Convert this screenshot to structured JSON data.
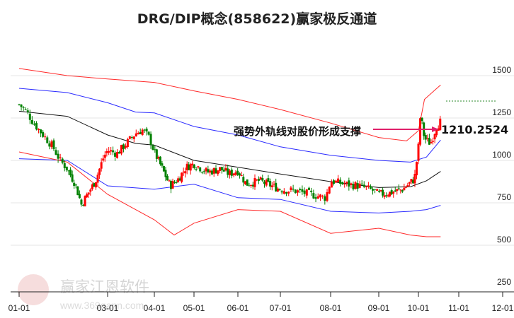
{
  "chart_data": {
    "type": "candlestick",
    "title": "DRG/DIP概念(858622)赢家极反通道",
    "y_ticks": [
      1500,
      1250,
      1000,
      750,
      500,
      250
    ],
    "ylim": [
      230,
      1560
    ],
    "x_ticks": [
      {
        "m": 1,
        "label": "01-01"
      },
      {
        "m": 3,
        "label": "03-01"
      },
      {
        "m": 4,
        "label": "04-01"
      },
      {
        "m": 5,
        "label": "05-01"
      },
      {
        "m": 6,
        "label": "06-01"
      },
      {
        "m": 7,
        "label": "07-01"
      },
      {
        "m": 8,
        "label": "08-01"
      },
      {
        "m": 9,
        "label": "09-01"
      },
      {
        "m": 10,
        "label": "10-01"
      },
      {
        "m": 11,
        "label": "11-01"
      },
      {
        "m": 12,
        "label": "12-01"
      }
    ],
    "close": [
      [
        1.0,
        1330
      ],
      [
        1.15,
        1290
      ],
      [
        1.3,
        1220
      ],
      [
        1.5,
        1150
      ],
      [
        1.7,
        1080
      ],
      [
        1.85,
        1000
      ],
      [
        2.0,
        950
      ],
      [
        2.2,
        860
      ],
      [
        2.35,
        740
      ],
      [
        2.5,
        800
      ],
      [
        2.7,
        880
      ],
      [
        2.9,
        1020
      ],
      [
        3.0,
        1060
      ],
      [
        3.2,
        1040
      ],
      [
        3.4,
        1100
      ],
      [
        3.6,
        1160
      ],
      [
        3.75,
        1180
      ],
      [
        3.9,
        1130
      ],
      [
        4.0,
        1050
      ],
      [
        4.2,
        950
      ],
      [
        4.4,
        850
      ],
      [
        4.6,
        890
      ],
      [
        4.8,
        960
      ],
      [
        5.0,
        980
      ],
      [
        5.3,
        930
      ],
      [
        5.6,
        950
      ],
      [
        5.8,
        920
      ],
      [
        6.0,
        940
      ],
      [
        6.2,
        860
      ],
      [
        6.5,
        880
      ],
      [
        6.8,
        850
      ],
      [
        7.0,
        830
      ],
      [
        7.3,
        820
      ],
      [
        7.6,
        800
      ],
      [
        7.9,
        780
      ],
      [
        8.0,
        880
      ],
      [
        8.3,
        860
      ],
      [
        8.6,
        850
      ],
      [
        8.9,
        820
      ],
      [
        9.0,
        800
      ],
      [
        9.3,
        810
      ],
      [
        9.6,
        830
      ],
      [
        9.9,
        890
      ],
      [
        10.0,
        1080
      ],
      [
        10.05,
        1270
      ],
      [
        10.15,
        1130
      ],
      [
        10.3,
        1100
      ],
      [
        10.45,
        1200
      ],
      [
        10.55,
        1230
      ]
    ],
    "bands": [
      {
        "name": "outer-upper",
        "color": "#ff2a2a",
        "points": [
          [
            1.0,
            1542
          ],
          [
            2.0,
            1500
          ],
          [
            3.0,
            1480
          ],
          [
            4.0,
            1460
          ],
          [
            5.0,
            1410
          ],
          [
            6.0,
            1360
          ],
          [
            7.0,
            1300
          ],
          [
            8.0,
            1220
          ],
          [
            9.0,
            1135
          ],
          [
            9.7,
            1115
          ],
          [
            10.0,
            1175
          ],
          [
            10.15,
            1360
          ],
          [
            10.55,
            1445
          ]
        ]
      },
      {
        "name": "inner-upper",
        "color": "#2a2aff",
        "points": [
          [
            1.0,
            1425
          ],
          [
            2.0,
            1400
          ],
          [
            3.0,
            1340
          ],
          [
            3.6,
            1285
          ],
          [
            4.0,
            1280
          ],
          [
            5.0,
            1200
          ],
          [
            6.0,
            1150
          ],
          [
            7.0,
            1080
          ],
          [
            8.0,
            1030
          ],
          [
            9.0,
            1000
          ],
          [
            9.8,
            990
          ],
          [
            10.2,
            1020
          ],
          [
            10.55,
            1120
          ]
        ]
      },
      {
        "name": "middle",
        "color": "#111111",
        "points": [
          [
            1.0,
            1290
          ],
          [
            2.0,
            1260
          ],
          [
            3.0,
            1150
          ],
          [
            3.6,
            1100
          ],
          [
            4.0,
            1090
          ],
          [
            5.0,
            1000
          ],
          [
            6.0,
            960
          ],
          [
            7.0,
            920
          ],
          [
            8.0,
            875
          ],
          [
            9.0,
            840
          ],
          [
            9.8,
            845
          ],
          [
            10.2,
            880
          ],
          [
            10.55,
            935
          ]
        ]
      },
      {
        "name": "inner-lower",
        "color": "#2a2aff",
        "points": [
          [
            1.0,
            1010
          ],
          [
            2.0,
            1000
          ],
          [
            3.0,
            850
          ],
          [
            4.0,
            830
          ],
          [
            5.0,
            860
          ],
          [
            6.0,
            780
          ],
          [
            7.0,
            770
          ],
          [
            8.0,
            700
          ],
          [
            9.0,
            690
          ],
          [
            9.8,
            700
          ],
          [
            10.2,
            710
          ],
          [
            10.55,
            735
          ]
        ]
      },
      {
        "name": "outer-lower",
        "color": "#ff2a2a",
        "points": [
          [
            1.0,
            1050
          ],
          [
            2.0,
            990
          ],
          [
            3.0,
            800
          ],
          [
            4.0,
            650
          ],
          [
            4.5,
            560
          ],
          [
            5.0,
            630
          ],
          [
            6.0,
            710
          ],
          [
            7.0,
            700
          ],
          [
            8.0,
            570
          ],
          [
            9.0,
            600
          ],
          [
            9.8,
            560
          ],
          [
            10.2,
            550
          ],
          [
            10.55,
            550
          ]
        ]
      }
    ],
    "annotation": {
      "text": "强势外轨线对股价形成支撑",
      "value": "1210.2524"
    }
  },
  "watermark": {
    "name": "赢家江恩软件",
    "url": "www.369gann.com",
    "seal": "江赢恩家"
  }
}
